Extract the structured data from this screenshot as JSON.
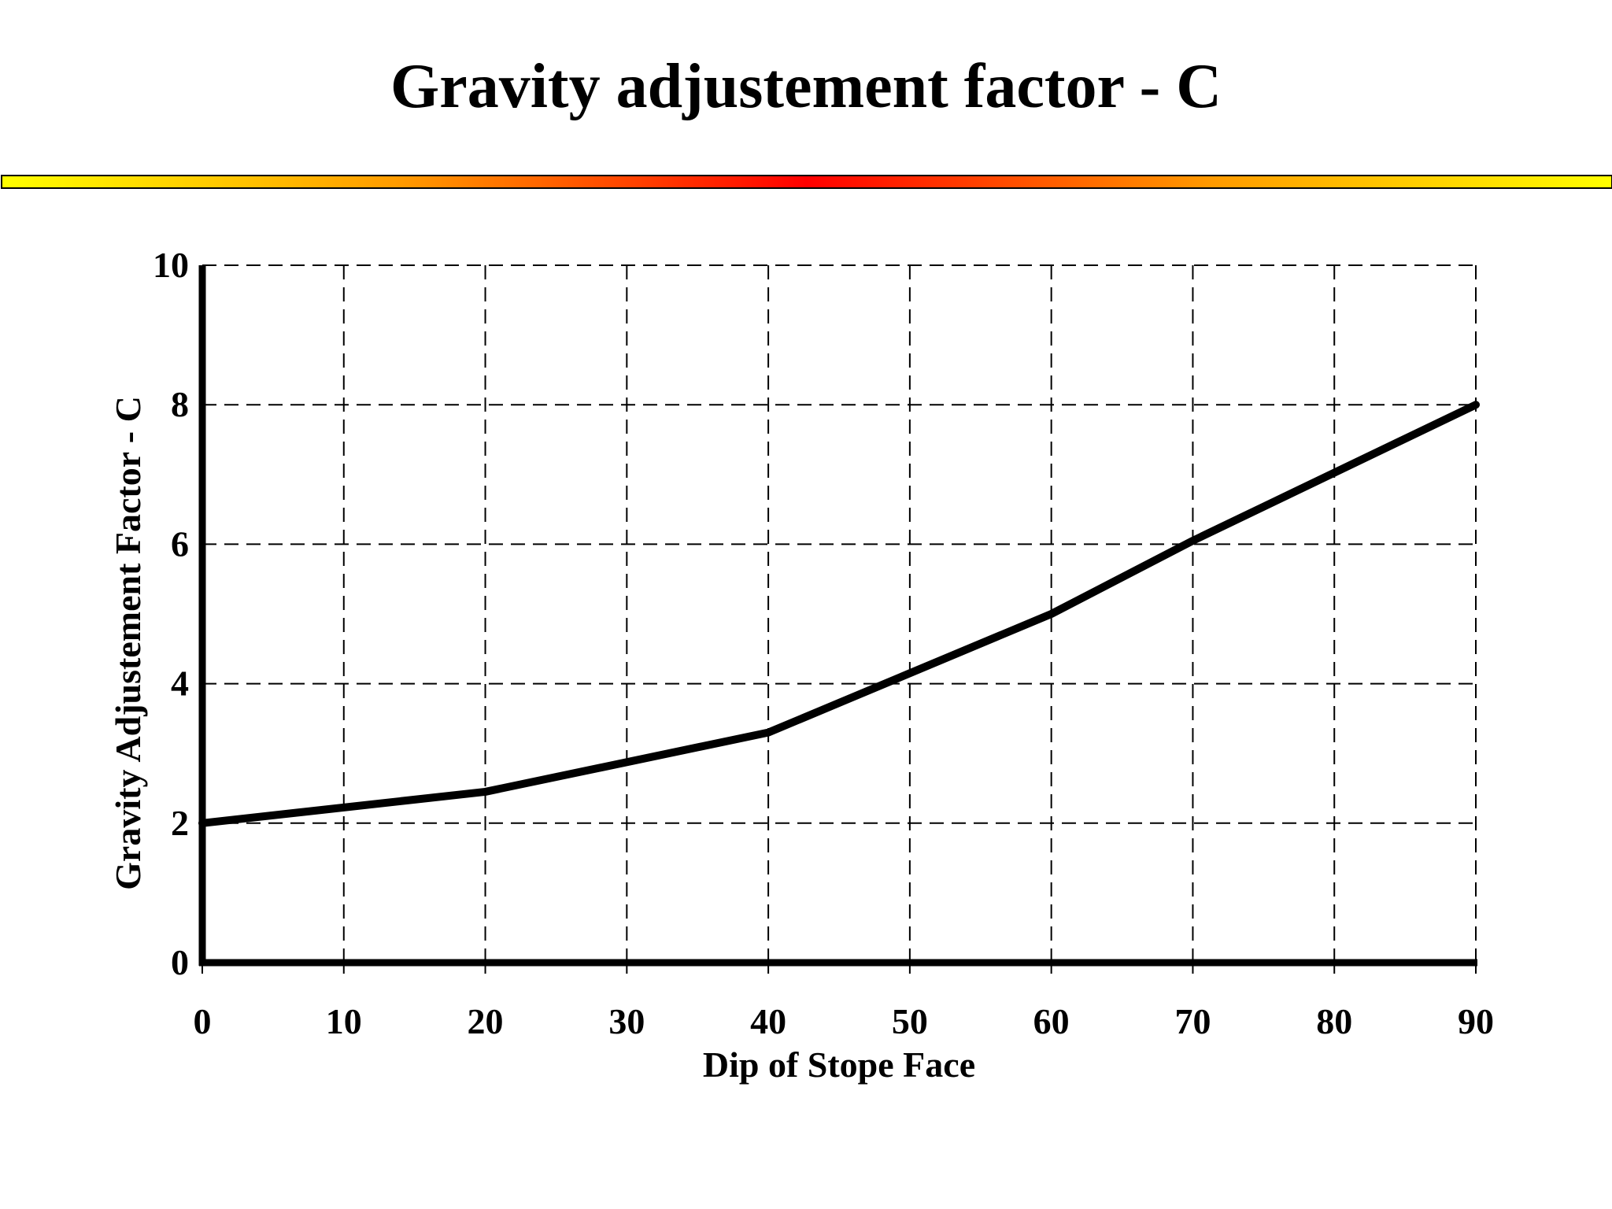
{
  "slide": {
    "title": "Gravity adjustement factor - C"
  },
  "chart_data": {
    "type": "line",
    "title": "",
    "xlabel": "Dip of Stope Face",
    "ylabel": "Gravity Adjustement Factor - C",
    "xlim": [
      0,
      90
    ],
    "ylim": [
      0,
      10
    ],
    "xticks": [
      0,
      10,
      20,
      30,
      40,
      50,
      60,
      70,
      80,
      90
    ],
    "yticks": [
      0,
      2,
      4,
      6,
      8,
      10
    ],
    "grid": true,
    "grid_style": "dashed",
    "series": [
      {
        "x": [
          0,
          20,
          40,
          60,
          70,
          90
        ],
        "y": [
          2.0,
          2.45,
          3.3,
          5.0,
          6.05,
          8.0
        ],
        "color": "#000000"
      }
    ],
    "colors": {
      "bar_gradient": [
        "#ffff00",
        "#ff9900",
        "#ff0000",
        "#ff9900",
        "#ffff00"
      ]
    }
  }
}
